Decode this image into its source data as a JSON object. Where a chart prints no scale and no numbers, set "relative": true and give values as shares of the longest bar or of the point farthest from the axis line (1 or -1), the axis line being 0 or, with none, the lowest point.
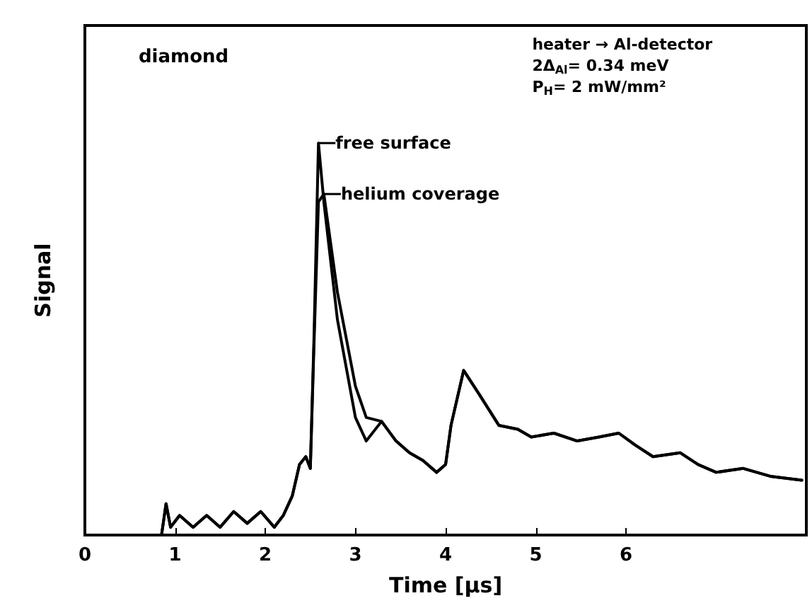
{
  "chart_data": {
    "type": "line",
    "relative": true,
    "xlabel": "Time [µs]",
    "ylabel": "Signal",
    "xlim": [
      0,
      8
    ],
    "xticks": [
      0,
      1,
      2,
      3,
      4,
      5,
      6
    ],
    "legend": "top",
    "grid": false,
    "marker": "none",
    "annotations": [
      "diamond",
      "heater → Al-detector",
      "2Δ$_{Al}$= 0.34 meV",
      "P$_{H}$= 2 mW/mm²"
    ],
    "x": [
      0,
      0.85,
      0.9,
      0.95,
      1.05,
      1.2,
      1.35,
      1.5,
      1.65,
      1.8,
      1.95,
      2.1,
      2.2,
      2.3,
      2.38,
      2.45,
      2.5,
      2.54,
      2.59,
      2.65,
      2.8,
      3.0,
      3.12,
      3.29,
      3.45,
      3.6,
      3.75,
      3.9,
      4.0,
      4.06,
      4.2,
      4.37,
      4.59,
      4.8,
      4.95,
      5.2,
      5.46,
      5.7,
      5.92,
      6.1,
      6.3,
      6.6,
      6.8,
      7.0,
      7.3,
      7.6,
      7.95
    ],
    "series": [
      {
        "name": "free surface",
        "color": "#000000",
        "values": [
          0,
          0,
          0.08,
          0.02,
          0.05,
          0.02,
          0.05,
          0.02,
          0.06,
          0.03,
          0.06,
          0.02,
          0.05,
          0.1,
          0.18,
          0.2,
          0.17,
          0.5,
          1.0,
          0.85,
          0.55,
          0.3,
          0.24,
          0.29,
          0.24,
          0.21,
          0.19,
          0.16,
          0.18,
          0.28,
          0.42,
          0.36,
          0.28,
          0.27,
          0.25,
          0.26,
          0.24,
          0.25,
          0.26,
          0.23,
          0.2,
          0.21,
          0.18,
          0.16,
          0.17,
          0.15,
          0.14
        ]
      },
      {
        "name": "helium coverage",
        "color": "#000000",
        "values": [
          0,
          0,
          0.08,
          0.02,
          0.05,
          0.02,
          0.05,
          0.02,
          0.06,
          0.03,
          0.06,
          0.02,
          0.05,
          0.1,
          0.18,
          0.2,
          0.17,
          0.48,
          0.85,
          0.87,
          0.62,
          0.38,
          0.3,
          0.29,
          0.24,
          0.21,
          0.19,
          0.16,
          0.18,
          0.28,
          0.42,
          0.36,
          0.28,
          0.27,
          0.25,
          0.26,
          0.24,
          0.25,
          0.26,
          0.23,
          0.2,
          0.21,
          0.18,
          0.16,
          0.17,
          0.15,
          0.14
        ]
      }
    ]
  }
}
